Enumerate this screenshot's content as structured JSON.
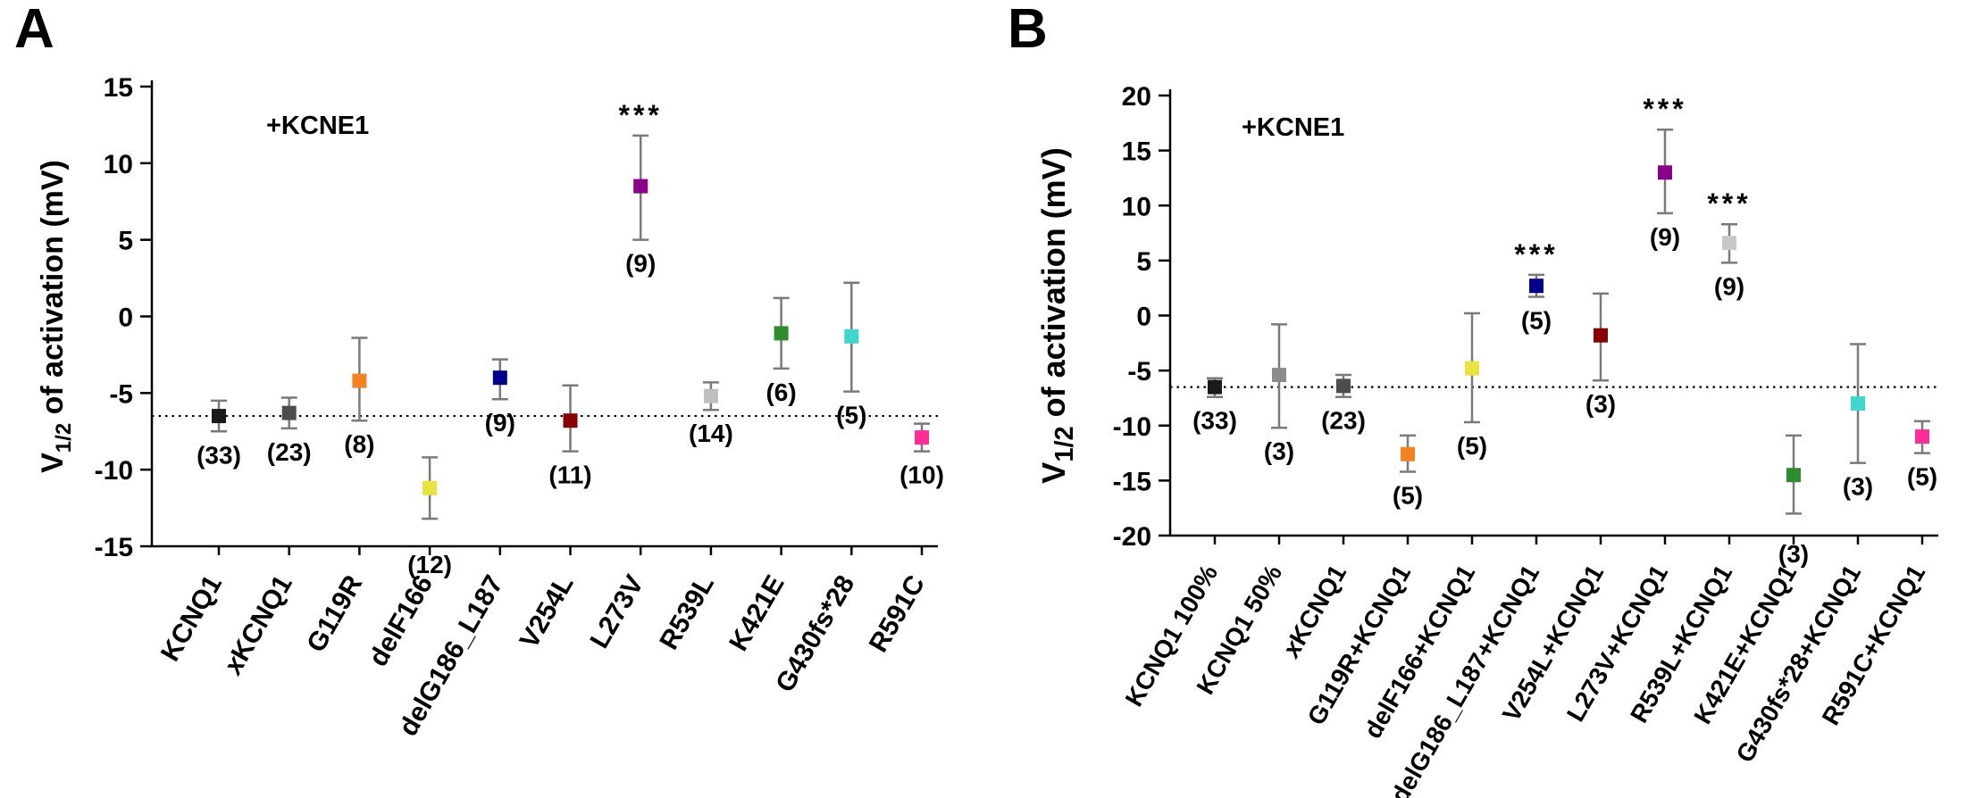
{
  "chart_data": [
    {
      "id": "A",
      "panel_label": "A",
      "type": "scatter",
      "title": "",
      "annotation": "+KCNE1",
      "ylabel": "V1/2 of activation (mV)",
      "ylabel_parts": {
        "pre": "V",
        "sub": "1/2",
        "post": " of activation (mV)"
      },
      "xlabel": "",
      "ylim": [
        -15,
        15
      ],
      "yticks": [
        15,
        10,
        5,
        0,
        -5,
        -10,
        -15
      ],
      "reference_line_y": -6.5,
      "grid": false,
      "legend": "none",
      "marker": "square",
      "error_bar_color": "#7a7a7a",
      "categories": [
        "KCNQ1",
        "xKCNQ1",
        "G119R",
        "delF166",
        "delG186_L187",
        "V254L",
        "L273V",
        "R539L",
        "K421E",
        "G430fs*28",
        "R591C"
      ],
      "series": [
        {
          "name": "V1/2 of activation (+KCNE1)",
          "points": [
            {
              "category": "KCNQ1",
              "y": -6.5,
              "err_plus": 1.0,
              "err_minus": 1.0,
              "n_label": "(33)",
              "color": "#1a1a1a",
              "significance": ""
            },
            {
              "category": "xKCNQ1",
              "y": -6.3,
              "err_plus": 1.0,
              "err_minus": 1.0,
              "n_label": "(23)",
              "color": "#4d4d4d",
              "significance": ""
            },
            {
              "category": "G119R",
              "y": -4.2,
              "err_plus": 2.8,
              "err_minus": 2.6,
              "n_label": "(8)",
              "color": "#f58220",
              "significance": ""
            },
            {
              "category": "delF166",
              "y": -11.2,
              "err_plus": 2.0,
              "err_minus": 2.0,
              "n_label": "(12)",
              "color": "#e8e33e",
              "significance": ""
            },
            {
              "category": "delG186_L187",
              "y": -4.0,
              "err_plus": 1.2,
              "err_minus": 1.4,
              "n_label": "(9)",
              "color": "#00008b",
              "significance": ""
            },
            {
              "category": "V254L",
              "y": -6.8,
              "err_plus": 2.3,
              "err_minus": 2.0,
              "n_label": "(11)",
              "color": "#8b0000",
              "significance": ""
            },
            {
              "category": "L273V",
              "y": 8.5,
              "err_plus": 3.3,
              "err_minus": 3.5,
              "n_label": "(9)",
              "color": "#8b008b",
              "significance": "***"
            },
            {
              "category": "R539L",
              "y": -5.2,
              "err_plus": 0.9,
              "err_minus": 0.9,
              "n_label": "(14)",
              "color": "#bfbfbf",
              "significance": ""
            },
            {
              "category": "K421E",
              "y": -1.1,
              "err_plus": 2.3,
              "err_minus": 2.3,
              "n_label": "(6)",
              "color": "#2e8b2e",
              "significance": ""
            },
            {
              "category": "G430fs*28",
              "y": -1.3,
              "err_plus": 3.5,
              "err_minus": 3.6,
              "n_label": "(5)",
              "color": "#3fd6cd",
              "significance": ""
            },
            {
              "category": "R591C",
              "y": -7.9,
              "err_plus": 0.9,
              "err_minus": 0.9,
              "n_label": "(10)",
              "color": "#ff2d96",
              "significance": ""
            }
          ]
        }
      ]
    },
    {
      "id": "B",
      "panel_label": "B",
      "type": "scatter",
      "title": "",
      "annotation": "+KCNE1",
      "ylabel": "V1/2 of activation (mV)",
      "ylabel_parts": {
        "pre": "V",
        "sub": "1/2",
        "post": " of activation (mV)"
      },
      "xlabel": "",
      "ylim": [
        -20,
        20
      ],
      "yticks": [
        20,
        15,
        10,
        5,
        0,
        -5,
        -10,
        -15,
        -20
      ],
      "reference_line_y": -6.5,
      "grid": false,
      "legend": "none",
      "marker": "square",
      "error_bar_color": "#7a7a7a",
      "categories": [
        "KCNQ1 100%",
        "KCNQ1 50%",
        "xKCNQ1",
        "G119R+KCNQ1",
        "delF166+KCNQ1",
        "delG186_L187+KCNQ1",
        "V254L+KCNQ1",
        "L273V+KCNQ1",
        "R539L+KCNQ1",
        "K421E+KCNQ1",
        "G430fs*28+KCNQ1",
        "R591C+KCNQ1"
      ],
      "series": [
        {
          "name": "V1/2 of activation (+KCNE1)",
          "points": [
            {
              "category": "KCNQ1 100%",
              "y": -6.5,
              "err_plus": 0.8,
              "err_minus": 0.9,
              "n_label": "(33)",
              "color": "#1a1a1a",
              "significance": ""
            },
            {
              "category": "KCNQ1 50%",
              "y": -5.4,
              "err_plus": 4.6,
              "err_minus": 4.8,
              "n_label": "(3)",
              "color": "#8c8c8c",
              "significance": ""
            },
            {
              "category": "xKCNQ1",
              "y": -6.4,
              "err_plus": 1.0,
              "err_minus": 1.0,
              "n_label": "(23)",
              "color": "#4d4d4d",
              "significance": ""
            },
            {
              "category": "G119R+KCNQ1",
              "y": -12.6,
              "err_plus": 1.7,
              "err_minus": 1.6,
              "n_label": "(5)",
              "color": "#f58220",
              "significance": ""
            },
            {
              "category": "delF166+KCNQ1",
              "y": -4.8,
              "err_plus": 5.0,
              "err_minus": 4.9,
              "n_label": "(5)",
              "color": "#e8e33e",
              "significance": ""
            },
            {
              "category": "delG186_L187+KCNQ1",
              "y": 2.7,
              "err_plus": 1.0,
              "err_minus": 1.0,
              "n_label": "(5)",
              "color": "#00008b",
              "significance": "***"
            },
            {
              "category": "V254L+KCNQ1",
              "y": -1.8,
              "err_plus": 3.8,
              "err_minus": 4.1,
              "n_label": "(3)",
              "color": "#8b0000",
              "significance": ""
            },
            {
              "category": "L273V+KCNQ1",
              "y": 13.0,
              "err_plus": 3.9,
              "err_minus": 3.7,
              "n_label": "(9)",
              "color": "#8b008b",
              "significance": "***"
            },
            {
              "category": "R539L+KCNQ1",
              "y": 6.6,
              "err_plus": 1.7,
              "err_minus": 1.8,
              "n_label": "(9)",
              "color": "#c8c8c8",
              "significance": "***"
            },
            {
              "category": "K421E+KCNQ1",
              "y": -14.5,
              "err_plus": 3.6,
              "err_minus": 3.5,
              "n_label": "(3)",
              "color": "#2e8b2e",
              "significance": ""
            },
            {
              "category": "G430fs*28+KCNQ1",
              "y": -8.0,
              "err_plus": 5.4,
              "err_minus": 5.4,
              "n_label": "(3)",
              "color": "#3fd6cd",
              "significance": ""
            },
            {
              "category": "R591C+KCNQ1",
              "y": -11.0,
              "err_plus": 1.4,
              "err_minus": 1.5,
              "n_label": "(5)",
              "color": "#ff2d96",
              "significance": ""
            }
          ]
        }
      ]
    }
  ]
}
